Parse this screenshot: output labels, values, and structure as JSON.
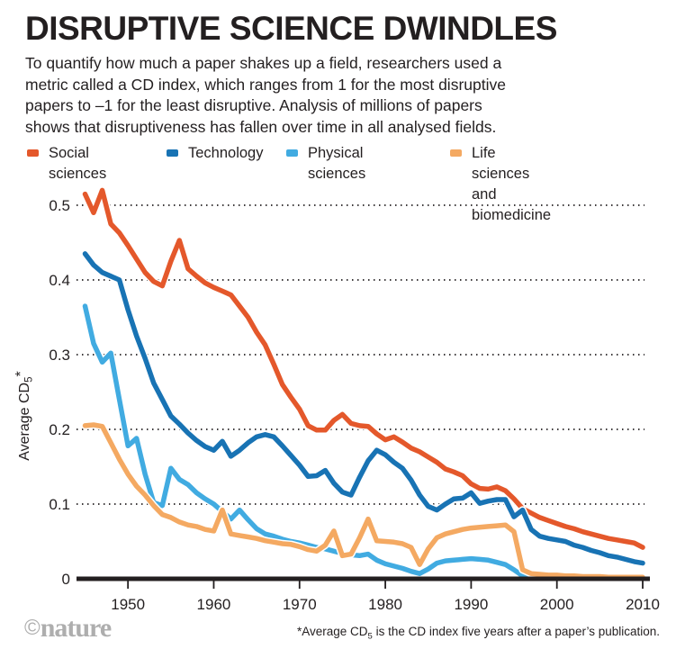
{
  "chart_data": {
    "type": "line",
    "title": "DISRUPTIVE SCIENCE DWINDLES",
    "description_lines": [
      "To quantify how much a paper shakes up a field, researchers used a",
      "metric called a CD index, which ranges from 1 for the most disruptive",
      "papers to –1 for the least disruptive. Analysis of millions of papers",
      "shows that disruptiveness has fallen over time in all analysed fields."
    ],
    "ylabel": {
      "prefix": "Average CD",
      "sub": "5",
      "suffix": "*"
    },
    "xlabel": "",
    "xlim": [
      1945,
      2010
    ],
    "ylim": [
      0,
      0.5
    ],
    "x_ticks": [
      1950,
      1960,
      1970,
      1980,
      1990,
      2000,
      2010
    ],
    "y_ticks": [
      0,
      0.1,
      0.2,
      0.3,
      0.4,
      0.5
    ],
    "grid": "horizontal-dotted",
    "legend_position": "top",
    "axis_color": "#231f20",
    "series": [
      {
        "name": "Social sciences",
        "legend_lines": [
          "Social sciences"
        ],
        "color": "#e4582b",
        "start_year": 1945,
        "values": [
          0.515,
          0.49,
          0.52,
          0.475,
          0.463,
          0.446,
          0.428,
          0.41,
          0.398,
          0.392,
          0.425,
          0.453,
          0.415,
          0.405,
          0.396,
          0.39,
          0.385,
          0.38,
          0.365,
          0.35,
          0.33,
          0.313,
          0.287,
          0.26,
          0.243,
          0.227,
          0.205,
          0.199,
          0.199,
          0.212,
          0.22,
          0.208,
          0.205,
          0.204,
          0.194,
          0.186,
          0.19,
          0.183,
          0.175,
          0.17,
          0.163,
          0.156,
          0.147,
          0.143,
          0.138,
          0.127,
          0.121,
          0.12,
          0.123,
          0.118,
          0.107,
          0.094,
          0.088,
          0.082,
          0.078,
          0.074,
          0.07,
          0.067,
          0.063,
          0.06,
          0.057,
          0.054,
          0.052,
          0.05,
          0.048,
          0.042
        ]
      },
      {
        "name": "Technology",
        "legend_lines": [
          "Technology"
        ],
        "color": "#1873b4",
        "start_year": 1945,
        "values": [
          0.435,
          0.42,
          0.41,
          0.405,
          0.4,
          0.36,
          0.325,
          0.295,
          0.262,
          0.24,
          0.218,
          0.207,
          0.195,
          0.185,
          0.177,
          0.172,
          0.184,
          0.164,
          0.172,
          0.182,
          0.19,
          0.193,
          0.19,
          0.178,
          0.165,
          0.152,
          0.137,
          0.138,
          0.145,
          0.128,
          0.116,
          0.112,
          0.136,
          0.158,
          0.172,
          0.166,
          0.156,
          0.148,
          0.132,
          0.112,
          0.097,
          0.092,
          0.1,
          0.107,
          0.108,
          0.115,
          0.101,
          0.104,
          0.106,
          0.106,
          0.083,
          0.092,
          0.066,
          0.057,
          0.054,
          0.052,
          0.05,
          0.045,
          0.042,
          0.038,
          0.035,
          0.031,
          0.029,
          0.026,
          0.023,
          0.021
        ]
      },
      {
        "name": "Physical sciences",
        "legend_lines": [
          "Physical sciences"
        ],
        "color": "#41abe1",
        "start_year": 1945,
        "values": [
          0.365,
          0.315,
          0.29,
          0.302,
          0.24,
          0.178,
          0.188,
          0.14,
          0.102,
          0.098,
          0.148,
          0.133,
          0.126,
          0.115,
          0.107,
          0.1,
          0.09,
          0.08,
          0.092,
          0.079,
          0.067,
          0.06,
          0.057,
          0.053,
          0.05,
          0.048,
          0.045,
          0.042,
          0.04,
          0.037,
          0.034,
          0.032,
          0.031,
          0.033,
          0.025,
          0.02,
          0.017,
          0.014,
          0.01,
          0.007,
          0.013,
          0.021,
          0.024,
          0.025,
          0.026,
          0.027,
          0.026,
          0.025,
          0.022,
          0.019,
          0.012,
          0.004,
          0.002,
          0.002,
          0.002,
          0.002,
          0.002,
          0.002,
          0.002,
          0.002,
          0.002,
          0.002,
          0.002,
          0.002,
          0.002,
          0.003
        ]
      },
      {
        "name": "Life sciences and biomedicine",
        "legend_lines": [
          "Life sciences",
          "and biomedicine"
        ],
        "color": "#f4a962",
        "start_year": 1945,
        "values": [
          0.205,
          0.206,
          0.204,
          0.182,
          0.16,
          0.14,
          0.124,
          0.112,
          0.098,
          0.086,
          0.082,
          0.076,
          0.072,
          0.07,
          0.066,
          0.064,
          0.092,
          0.06,
          0.058,
          0.056,
          0.054,
          0.051,
          0.049,
          0.047,
          0.046,
          0.043,
          0.039,
          0.037,
          0.045,
          0.064,
          0.031,
          0.033,
          0.055,
          0.08,
          0.051,
          0.05,
          0.049,
          0.047,
          0.042,
          0.019,
          0.04,
          0.055,
          0.06,
          0.063,
          0.066,
          0.068,
          0.069,
          0.07,
          0.071,
          0.072,
          0.063,
          0.012,
          0.007,
          0.006,
          0.005,
          0.005,
          0.004,
          0.004,
          0.003,
          0.003,
          0.003,
          0.002,
          0.002,
          0.002,
          0.002,
          0.002
        ]
      }
    ]
  },
  "footer": {
    "copyright_symbol": "©",
    "brand": "nature",
    "footnote": {
      "prefix": "*Average CD",
      "sub": "5",
      "suffix": " is the CD index five years after a paper’s publication."
    }
  }
}
